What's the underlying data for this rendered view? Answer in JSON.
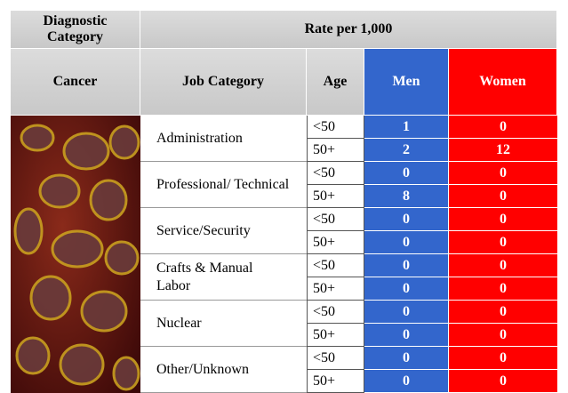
{
  "header": {
    "diagnostic_category": "Diagnostic Category",
    "rate": "Rate per 1,000"
  },
  "columns": [
    "Cancer",
    "Job Category",
    "Age",
    "Men",
    "Women"
  ],
  "groups": [
    {
      "job": "Administration",
      "rows": [
        {
          "age": "<50",
          "men": 1,
          "women": 0
        },
        {
          "age": "50+",
          "men": 2,
          "women": 12
        }
      ]
    },
    {
      "job": "Professional/ Technical",
      "rows": [
        {
          "age": "<50",
          "men": 0,
          "women": 0
        },
        {
          "age": "50+",
          "men": 8,
          "women": 0
        }
      ]
    },
    {
      "job": "Service/Security",
      "rows": [
        {
          "age": "<50",
          "men": 0,
          "women": 0
        },
        {
          "age": "50+",
          "men": 0,
          "women": 0
        }
      ]
    },
    {
      "job": "Crafts & Manual Labor",
      "rows": [
        {
          "age": "<50",
          "men": 0,
          "women": 0
        },
        {
          "age": "50+",
          "men": 0,
          "women": 0
        }
      ]
    },
    {
      "job": "Nuclear",
      "rows": [
        {
          "age": "<50",
          "men": 0,
          "women": 0
        },
        {
          "age": "50+",
          "men": 0,
          "women": 0
        }
      ]
    },
    {
      "job": "Other/Unknown",
      "rows": [
        {
          "age": "<50",
          "men": 0,
          "women": 0
        },
        {
          "age": "50+",
          "men": 0,
          "women": 0
        }
      ]
    }
  ]
}
